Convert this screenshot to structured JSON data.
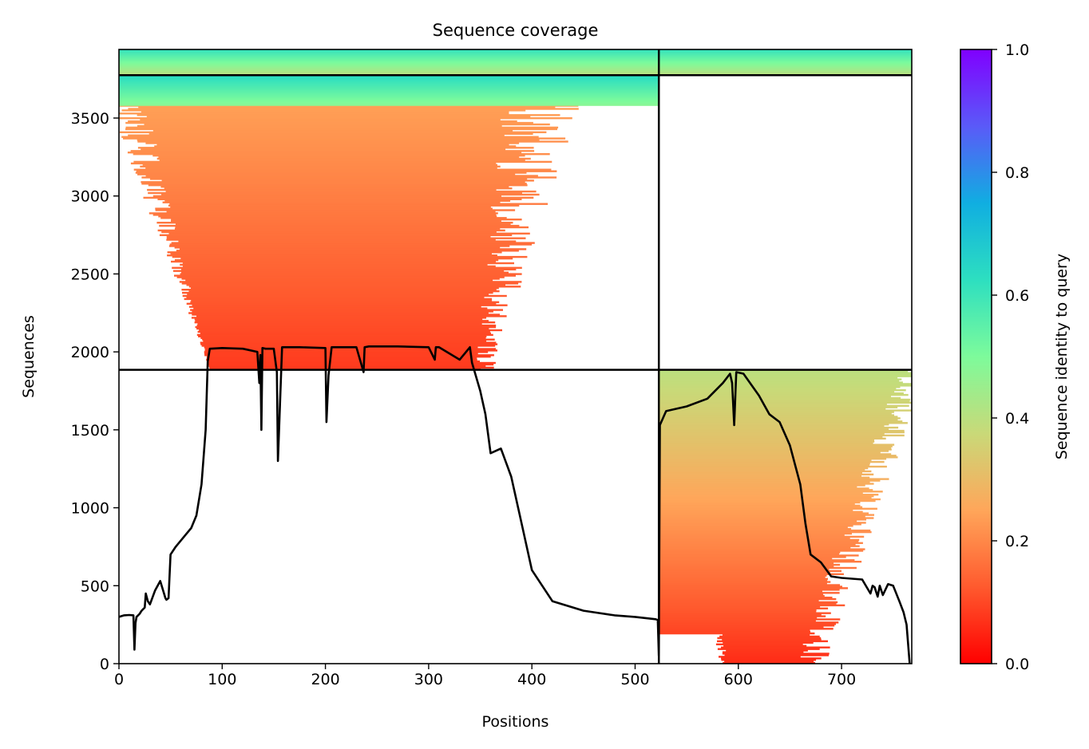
{
  "chart_data": {
    "type": "heatmap",
    "title": "Sequence coverage",
    "xlabel": "Positions",
    "ylabel": "Sequences",
    "xlim": [
      0,
      768
    ],
    "ylim": [
      0,
      3940
    ],
    "x_ticks": [
      0,
      100,
      200,
      300,
      400,
      500,
      600,
      700
    ],
    "y_ticks": [
      0,
      500,
      1000,
      1500,
      2000,
      2500,
      3000,
      3500
    ],
    "colorbar": {
      "label": "Sequence identity to query",
      "range": [
        0,
        1
      ],
      "ticks": [
        0.0,
        0.2,
        0.4,
        0.6,
        0.8,
        1.0
      ],
      "tick_labels": [
        "0.0",
        "0.2",
        "0.4",
        "0.6",
        "0.8",
        "1.0"
      ],
      "colormap": "rainbow_r",
      "stops": [
        "#ff0000",
        "#ff5a2e",
        "#ffa65a",
        "#c9d978",
        "#7dfb9b",
        "#2ddfc0",
        "#10aee1",
        "#5a5af8",
        "#8000ff"
      ]
    },
    "grid": false,
    "legend": "none",
    "segment_boundaries_x": [
      523
    ],
    "segment_boundaries_y": [
      1885,
      3775
    ],
    "msa_blocks": [
      {
        "x_start": 0,
        "x_end": 523,
        "y_start": 1885,
        "y_end": 3580,
        "identity_bottom": 0.08,
        "identity_top": 0.24
      },
      {
        "x_start": 0,
        "x_end": 523,
        "y_start": 3580,
        "y_end": 3775,
        "identity_bottom": 0.48,
        "identity_top": 0.64
      },
      {
        "x_start": 0,
        "x_end": 523,
        "y_start": 3775,
        "y_end": 3940,
        "identity_bottom": 0.4,
        "identity_top": 0.62
      },
      {
        "x_start": 523,
        "x_end": 768,
        "y_start": 0,
        "y_end": 1885,
        "identity_bottom": 0.06,
        "identity_top": 0.4
      },
      {
        "x_start": 523,
        "x_end": 768,
        "y_start": 3775,
        "y_end": 3940,
        "identity_bottom": 0.4,
        "identity_top": 0.62
      }
    ],
    "coverage_line": {
      "x": [
        0,
        5,
        10,
        14,
        15,
        16,
        17,
        20,
        22,
        25,
        26,
        28,
        30,
        35,
        40,
        45,
        46,
        48,
        50,
        55,
        60,
        65,
        70,
        75,
        80,
        84,
        86,
        88,
        100,
        120,
        134,
        136,
        137,
        138,
        139,
        142,
        150,
        153,
        154,
        158,
        175,
        200,
        201,
        203,
        206,
        212,
        230,
        237,
        238,
        242,
        270,
        300,
        306,
        307,
        310,
        330,
        340,
        342,
        350,
        355,
        360,
        370,
        380,
        390,
        400,
        420,
        450,
        480,
        500,
        520,
        522,
        523,
        524,
        530,
        550,
        570,
        585,
        592,
        594,
        596,
        598,
        605,
        620,
        630,
        640,
        650,
        660,
        665,
        670,
        680,
        690,
        700,
        720,
        728,
        730,
        732,
        735,
        737,
        740,
        745,
        750,
        756,
        760,
        763,
        766
      ],
      "y": [
        300,
        310,
        312,
        310,
        90,
        260,
        300,
        320,
        340,
        360,
        450,
        400,
        380,
        470,
        530,
        420,
        410,
        420,
        700,
        750,
        790,
        830,
        870,
        950,
        1150,
        1500,
        1940,
        2020,
        2025,
        2020,
        2000,
        1800,
        1980,
        1500,
        2025,
        2020,
        2020,
        1870,
        1300,
        2030,
        2030,
        2025,
        1550,
        1850,
        2030,
        2030,
        2030,
        1870,
        2030,
        2035,
        2035,
        2030,
        1950,
        2030,
        2030,
        1950,
        2030,
        1930,
        1750,
        1600,
        1350,
        1380,
        1200,
        900,
        600,
        400,
        340,
        310,
        300,
        285,
        280,
        50,
        1530,
        1620,
        1650,
        1700,
        1800,
        1860,
        1800,
        1530,
        1870,
        1860,
        1720,
        1600,
        1550,
        1400,
        1150,
        900,
        700,
        650,
        560,
        550,
        540,
        450,
        500,
        490,
        430,
        500,
        440,
        510,
        500,
        400,
        330,
        250,
        0
      ]
    }
  }
}
